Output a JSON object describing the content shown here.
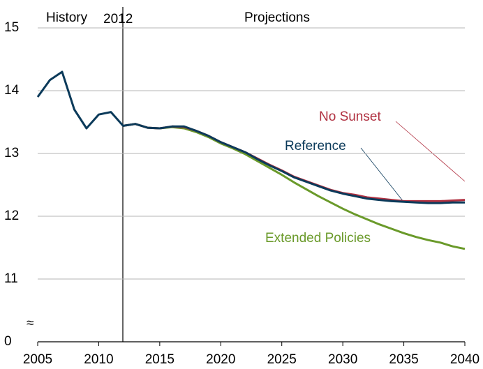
{
  "chart_data": {
    "type": "line",
    "annotations": {
      "history": "History",
      "year": "2012",
      "projections": "Projections",
      "break": "≈"
    },
    "x": [
      2005,
      2006,
      2007,
      2008,
      2009,
      2010,
      2011,
      2012,
      2013,
      2014,
      2015,
      2016,
      2017,
      2018,
      2019,
      2020,
      2021,
      2022,
      2023,
      2024,
      2025,
      2026,
      2027,
      2028,
      2029,
      2030,
      2031,
      2032,
      2033,
      2034,
      2035,
      2036,
      2037,
      2038,
      2039,
      2040
    ],
    "series": [
      {
        "name": "Extended Policies",
        "color": "#6a9a2a",
        "values": [
          null,
          null,
          null,
          null,
          null,
          null,
          null,
          13.44,
          13.47,
          13.41,
          13.4,
          13.42,
          13.4,
          13.34,
          13.26,
          13.16,
          13.08,
          12.99,
          12.88,
          12.77,
          12.66,
          12.54,
          12.43,
          12.32,
          12.22,
          12.12,
          12.03,
          11.95,
          11.87,
          11.8,
          11.73,
          11.67,
          11.62,
          11.58,
          11.52,
          11.48
        ]
      },
      {
        "name": "No Sunset",
        "color": "#b03040",
        "values": [
          null,
          null,
          null,
          null,
          null,
          null,
          null,
          13.44,
          13.47,
          13.41,
          13.4,
          13.43,
          13.42,
          13.36,
          13.28,
          13.18,
          13.1,
          13.02,
          12.92,
          12.82,
          12.73,
          12.63,
          12.56,
          12.49,
          12.42,
          12.37,
          12.34,
          12.3,
          12.28,
          12.26,
          12.24,
          12.24,
          12.24,
          12.24,
          12.25,
          12.26
        ]
      },
      {
        "name": "Reference",
        "color": "#0b3a5a",
        "values": [
          13.9,
          14.17,
          14.3,
          13.7,
          13.4,
          13.62,
          13.66,
          13.44,
          13.47,
          13.41,
          13.4,
          13.43,
          13.43,
          13.36,
          13.28,
          13.18,
          13.1,
          13.02,
          12.91,
          12.81,
          12.72,
          12.62,
          12.55,
          12.48,
          12.41,
          12.36,
          12.32,
          12.28,
          12.26,
          12.24,
          12.23,
          12.22,
          12.21,
          12.21,
          12.22,
          12.22
        ]
      }
    ],
    "xlim": [
      2005,
      2040
    ],
    "xticks": [
      2005,
      2010,
      2015,
      2020,
      2025,
      2030,
      2035,
      2040
    ],
    "ylim": [
      0,
      15
    ],
    "ybreak": [
      0,
      10
    ],
    "yticks": [
      0,
      11,
      12,
      13,
      14,
      15
    ],
    "grid": true
  }
}
